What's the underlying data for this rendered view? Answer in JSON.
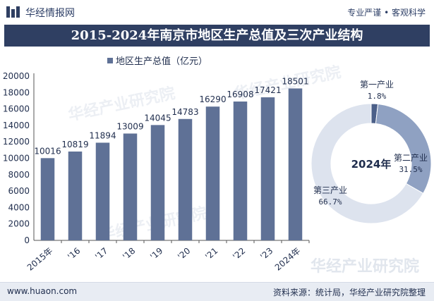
{
  "header": {
    "brand": "华经情报网",
    "slogan": "专业严谨 • 客观科学"
  },
  "title": "2015-2024年南京市地区生产总值及三次产业结构",
  "footer": {
    "site": "www.huaon.com",
    "source": "资料来源：统计局，华经产业研究院整理"
  },
  "watermark": {
    "text": "华经产业研究院",
    "url": "www.huaon.com"
  },
  "colors": {
    "bar": "#5f7196",
    "title_bg": "#2f3f62",
    "primary": "#4b5f88",
    "secondary": "#8fa1c2",
    "tertiary": "#dde3ee"
  },
  "chart_data": [
    {
      "type": "bar",
      "legend": "地区生产总值（亿元）",
      "categories": [
        "2015年",
        "'16",
        "'17",
        "'18",
        "'19",
        "'20",
        "'21",
        "'22",
        "'23",
        "2024年"
      ],
      "values": [
        10016,
        10819,
        11894,
        13009,
        14045,
        14783,
        16290,
        16908,
        17421,
        18501
      ],
      "ylim": [
        0,
        20000
      ],
      "yticks": [
        0,
        2000,
        4000,
        6000,
        8000,
        10000,
        12000,
        14000,
        16000,
        18000,
        20000
      ],
      "legend_position": "top-left"
    },
    {
      "type": "pie",
      "center_label": "2024年",
      "slices": [
        {
          "name": "第一产业",
          "value_label": "1.8%",
          "value": 1.8
        },
        {
          "name": "第二产业",
          "value_label": "31.5%",
          "value": 31.5
        },
        {
          "name": "第三产业",
          "value_label": "66.7%",
          "value": 66.7
        }
      ]
    }
  ]
}
